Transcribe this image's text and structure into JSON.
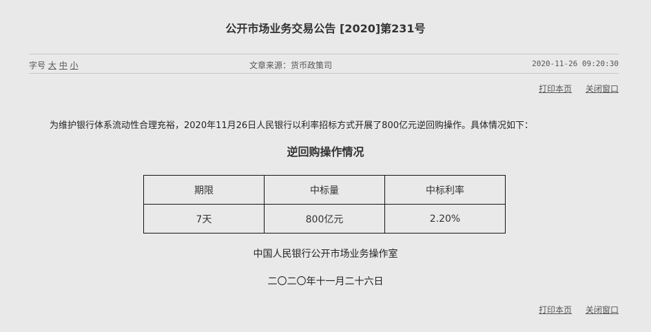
{
  "title": "公开市场业务交易公告 [2020]第231号",
  "meta": {
    "font_size_label": "字号",
    "font_sizes": [
      "大",
      "中",
      "小"
    ],
    "source": "文章来源：货币政策司",
    "datetime": "2020-11-26 09:20:30"
  },
  "actions": {
    "print": "打印本页",
    "close": "关闭窗口"
  },
  "paragraph": "为维护银行体系流动性合理充裕，2020年11月26日人民银行以利率招标方式开展了800亿元逆回购操作。具体情况如下：",
  "subtitle": "逆回购操作情况",
  "table": {
    "headers": [
      "期限",
      "中标量",
      "中标利率"
    ],
    "rows": [
      [
        "7天",
        "800亿元",
        "2.20%"
      ]
    ]
  },
  "signature": {
    "org": "中国人民银行公开市场业务操作室",
    "date": "二〇二〇年十一月二十六日"
  }
}
